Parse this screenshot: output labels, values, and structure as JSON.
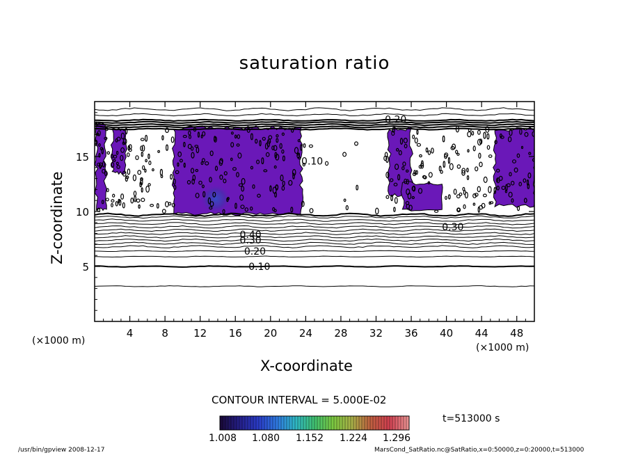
{
  "chart_data": {
    "type": "contour",
    "title": "saturation ratio",
    "xlabel": "X-coordinate",
    "ylabel": "Z-coordinate",
    "x_unit_label": "(×1000 m)",
    "z_unit_label": "(×1000 m)",
    "xlim": [
      0,
      50
    ],
    "ylim": [
      0,
      20
    ],
    "x_ticks": [
      4,
      8,
      12,
      16,
      20,
      24,
      28,
      32,
      36,
      40,
      44,
      48
    ],
    "y_ticks": [
      5,
      10,
      15
    ],
    "contour_interval_label": "CONTOUR INTERVAL = 5.000E-02",
    "time_label": "t=513000 s",
    "contour_labels": [
      {
        "text": "0.10",
        "x": 17.5,
        "z": 5.0
      },
      {
        "text": "0.20",
        "x": 17.0,
        "z": 6.4
      },
      {
        "text": "0.30",
        "x": 16.5,
        "z": 7.4
      },
      {
        "text": "0.40",
        "x": 16.5,
        "z": 7.9
      },
      {
        "text": "0.20",
        "x": 33.0,
        "z": 18.4
      },
      {
        "text": "0.10",
        "x": 23.5,
        "z": 14.6
      },
      {
        "text": "0.30",
        "x": 39.5,
        "z": 8.6
      }
    ],
    "colorbar": {
      "ticks": [
        "1.008",
        "1.080",
        "1.152",
        "1.224",
        "1.296"
      ],
      "min": 1.008,
      "max": 1.332,
      "colors": [
        "#1a0a3c",
        "#25208a",
        "#2a3cc8",
        "#2f7ae0",
        "#2fb8c4",
        "#40c070",
        "#7cc840",
        "#a8b048",
        "#c06040",
        "#d04050",
        "#e89090"
      ]
    },
    "shaded_regions": [
      {
        "x_range": [
          0.2,
          1.2
        ],
        "z_range": [
          10.2,
          18.0
        ],
        "level": 1.02
      },
      {
        "x_range": [
          2.0,
          3.5
        ],
        "z_range": [
          13.5,
          17.5
        ],
        "level": 1.02
      },
      {
        "x_range": [
          9.0,
          23.5
        ],
        "z_range": [
          9.8,
          17.6
        ],
        "level": 1.04
      },
      {
        "x_range": [
          12.0,
          15.5
        ],
        "z_range": [
          9.8,
          12.5
        ],
        "level": 1.07
      },
      {
        "x_range": [
          33.5,
          36.0
        ],
        "z_range": [
          11.5,
          17.5
        ],
        "level": 1.02
      },
      {
        "x_range": [
          35.0,
          39.5
        ],
        "z_range": [
          10.2,
          12.6
        ],
        "level": 1.03
      },
      {
        "x_range": [
          45.5,
          50.0
        ],
        "z_range": [
          10.5,
          17.5
        ],
        "level": 1.03
      }
    ]
  },
  "footer": {
    "left": "/usr/bin/gpview   2008-12-17",
    "right": "MarsCond_SatRatio.nc@SatRatio,x=0:50000,z=0:20000,t=513000"
  }
}
